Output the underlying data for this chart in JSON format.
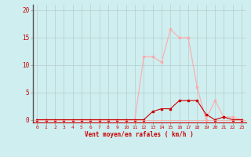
{
  "x": [
    0,
    1,
    2,
    3,
    4,
    5,
    6,
    7,
    8,
    9,
    10,
    11,
    12,
    13,
    14,
    15,
    16,
    17,
    18,
    19,
    20,
    21,
    22,
    23
  ],
  "vent_moyen": [
    0,
    0,
    0,
    0,
    0,
    0,
    0,
    0,
    0,
    0,
    0,
    0,
    0,
    1.5,
    2.0,
    2.0,
    3.5,
    3.5,
    3.5,
    1.0,
    0,
    0.5,
    0,
    0
  ],
  "rafales": [
    0,
    0,
    0,
    0,
    0,
    0,
    0,
    0,
    0,
    0,
    0,
    0,
    11.5,
    11.5,
    10.5,
    16.5,
    15.0,
    15.0,
    6.0,
    0,
    3.5,
    0.5,
    0.5,
    0
  ],
  "color_moyen": "#cc0000",
  "color_rafales": "#ffaaaa",
  "bg_color": "#ceeef0",
  "grid_color": "#bbcccc",
  "xlabel": "Vent moyen/en rafales ( km/h )",
  "ylabel_ticks": [
    0,
    5,
    10,
    15,
    20
  ],
  "ylim": [
    -0.5,
    21
  ],
  "xlim": [
    -0.5,
    23.5
  ]
}
